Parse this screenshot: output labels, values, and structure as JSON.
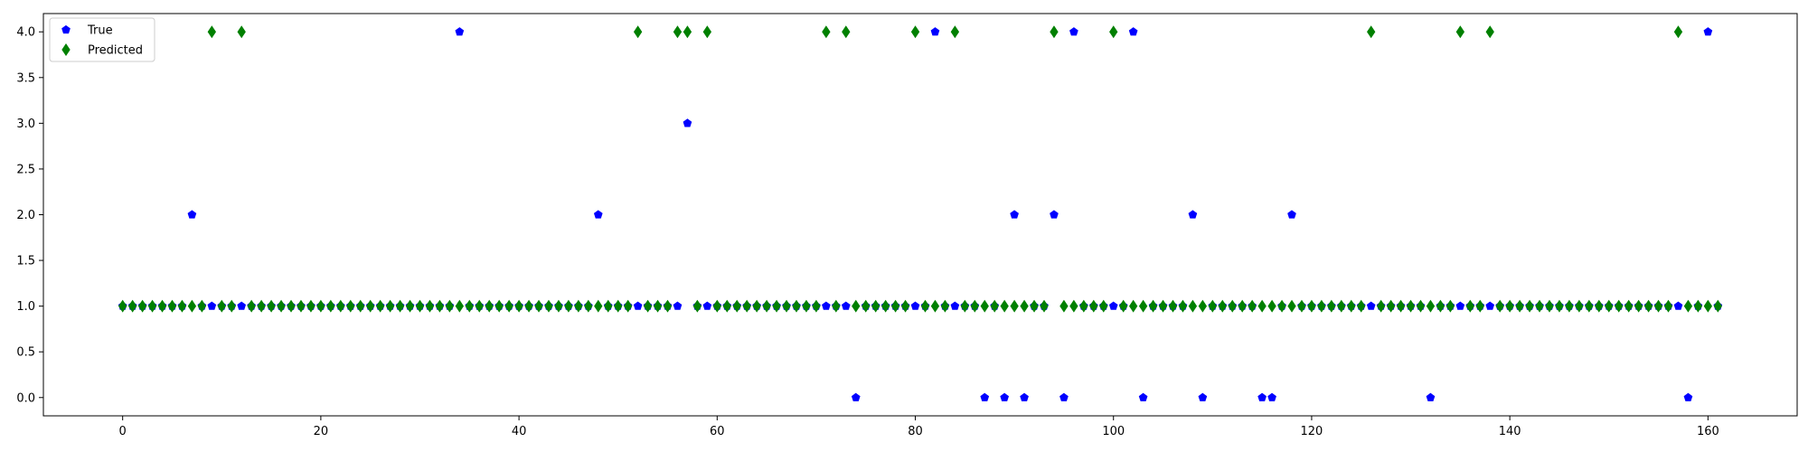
{
  "chart_data": {
    "type": "scatter",
    "title": "",
    "xlabel": "",
    "ylabel": "",
    "xlim": [
      -8,
      169
    ],
    "ylim": [
      -0.2,
      4.2
    ],
    "xticks": [
      0,
      20,
      40,
      60,
      80,
      100,
      120,
      140,
      160
    ],
    "yticks": [
      0.0,
      0.5,
      1.0,
      1.5,
      2.0,
      2.5,
      3.0,
      3.5,
      4.0
    ],
    "xtick_labels": [
      "0",
      "20",
      "40",
      "60",
      "80",
      "100",
      "120",
      "140",
      "160"
    ],
    "ytick_labels": [
      "0.0",
      "0.5",
      "1.0",
      "1.5",
      "2.0",
      "2.5",
      "3.0",
      "3.5",
      "4.0"
    ],
    "grid": false,
    "legend_position": "upper-left",
    "series": [
      {
        "name": "True",
        "color": "#0000ff",
        "marker": "pentagon",
        "x": [
          0,
          1,
          2,
          3,
          4,
          5,
          6,
          7,
          8,
          9,
          10,
          11,
          12,
          13,
          14,
          15,
          16,
          17,
          18,
          19,
          20,
          21,
          22,
          23,
          24,
          25,
          26,
          27,
          28,
          29,
          30,
          31,
          32,
          33,
          34,
          35,
          36,
          37,
          38,
          39,
          40,
          41,
          42,
          43,
          44,
          45,
          46,
          47,
          48,
          49,
          50,
          51,
          52,
          53,
          54,
          55,
          56,
          57,
          58,
          59,
          60,
          61,
          62,
          63,
          64,
          65,
          66,
          67,
          68,
          69,
          70,
          71,
          72,
          73,
          74,
          75,
          76,
          77,
          78,
          79,
          80,
          81,
          82,
          83,
          84,
          85,
          86,
          87,
          88,
          89,
          90,
          91,
          92,
          93,
          94,
          95,
          96,
          97,
          98,
          99,
          100,
          101,
          102,
          103,
          104,
          105,
          106,
          107,
          108,
          109,
          110,
          111,
          112,
          113,
          114,
          115,
          116,
          117,
          118,
          119,
          120,
          121,
          122,
          123,
          124,
          125,
          126,
          127,
          128,
          129,
          130,
          131,
          132,
          133,
          134,
          135,
          136,
          137,
          138,
          139,
          140,
          141,
          142,
          143,
          144,
          145,
          146,
          147,
          148,
          149,
          150,
          151,
          152,
          153,
          154,
          155,
          156,
          157,
          158,
          159,
          160,
          161
        ],
        "y": [
          1,
          1,
          1,
          1,
          1,
          1,
          1,
          2,
          1,
          1,
          1,
          1,
          1,
          1,
          1,
          1,
          1,
          1,
          1,
          1,
          1,
          1,
          1,
          1,
          1,
          1,
          1,
          1,
          1,
          1,
          1,
          1,
          1,
          1,
          4,
          1,
          1,
          1,
          1,
          1,
          1,
          1,
          1,
          1,
          1,
          1,
          1,
          1,
          2,
          1,
          1,
          1,
          1,
          1,
          1,
          1,
          1,
          3,
          1,
          1,
          1,
          1,
          1,
          1,
          1,
          1,
          1,
          1,
          1,
          1,
          1,
          1,
          1,
          1,
          0,
          1,
          1,
          1,
          1,
          1,
          1,
          1,
          4,
          1,
          1,
          1,
          1,
          0,
          1,
          0,
          2,
          0,
          1,
          1,
          2,
          0,
          4,
          1,
          1,
          1,
          1,
          1,
          4,
          0,
          1,
          1,
          1,
          1,
          2,
          0,
          1,
          1,
          1,
          1,
          1,
          0,
          0,
          1,
          2,
          1,
          1,
          1,
          1,
          1,
          1,
          1,
          1,
          1,
          1,
          1,
          1,
          1,
          0,
          1,
          1,
          1,
          1,
          1,
          1,
          1,
          1,
          1,
          1,
          1,
          1,
          1,
          1,
          1,
          1,
          1,
          1,
          1,
          1,
          1,
          1,
          1,
          1,
          1,
          0,
          1,
          4,
          1
        ]
      },
      {
        "name": "Predicted",
        "color": "#008000",
        "marker": "thin-diamond",
        "x": [
          0,
          1,
          2,
          3,
          4,
          5,
          6,
          7,
          8,
          9,
          10,
          11,
          12,
          13,
          14,
          15,
          16,
          17,
          18,
          19,
          20,
          21,
          22,
          23,
          24,
          25,
          26,
          27,
          28,
          29,
          30,
          31,
          32,
          33,
          34,
          35,
          36,
          37,
          38,
          39,
          40,
          41,
          42,
          43,
          44,
          45,
          46,
          47,
          48,
          49,
          50,
          51,
          52,
          53,
          54,
          55,
          56,
          57,
          58,
          59,
          60,
          61,
          62,
          63,
          64,
          65,
          66,
          67,
          68,
          69,
          70,
          71,
          72,
          73,
          74,
          75,
          76,
          77,
          78,
          79,
          80,
          81,
          82,
          83,
          84,
          85,
          86,
          87,
          88,
          89,
          90,
          91,
          92,
          93,
          94,
          95,
          96,
          97,
          98,
          99,
          100,
          101,
          102,
          103,
          104,
          105,
          106,
          107,
          108,
          109,
          110,
          111,
          112,
          113,
          114,
          115,
          116,
          117,
          118,
          119,
          120,
          121,
          122,
          123,
          124,
          125,
          126,
          127,
          128,
          129,
          130,
          131,
          132,
          133,
          134,
          135,
          136,
          137,
          138,
          139,
          140,
          141,
          142,
          143,
          144,
          145,
          146,
          147,
          148,
          149,
          150,
          151,
          152,
          153,
          154,
          155,
          156,
          157,
          158,
          159,
          160,
          161
        ],
        "y": [
          1,
          1,
          1,
          1,
          1,
          1,
          1,
          1,
          1,
          4,
          1,
          1,
          4,
          1,
          1,
          1,
          1,
          1,
          1,
          1,
          1,
          1,
          1,
          1,
          1,
          1,
          1,
          1,
          1,
          1,
          1,
          1,
          1,
          1,
          1,
          1,
          1,
          1,
          1,
          1,
          1,
          1,
          1,
          1,
          1,
          1,
          1,
          1,
          1,
          1,
          1,
          1,
          4,
          1,
          1,
          1,
          4,
          4,
          1,
          4,
          1,
          1,
          1,
          1,
          1,
          1,
          1,
          1,
          1,
          1,
          1,
          4,
          1,
          4,
          1,
          1,
          1,
          1,
          1,
          1,
          4,
          1,
          1,
          1,
          4,
          1,
          1,
          1,
          1,
          1,
          1,
          1,
          1,
          1,
          4,
          1,
          1,
          1,
          1,
          1,
          4,
          1,
          1,
          1,
          1,
          1,
          1,
          1,
          1,
          1,
          1,
          1,
          1,
          1,
          1,
          1,
          1,
          1,
          1,
          1,
          1,
          1,
          1,
          1,
          1,
          1,
          4,
          1,
          1,
          1,
          1,
          1,
          1,
          1,
          1,
          4,
          1,
          1,
          4,
          1,
          1,
          1,
          1,
          1,
          1,
          1,
          1,
          1,
          1,
          1,
          1,
          1,
          1,
          1,
          1,
          1,
          1,
          4,
          1,
          1,
          1,
          1
        ]
      }
    ]
  }
}
